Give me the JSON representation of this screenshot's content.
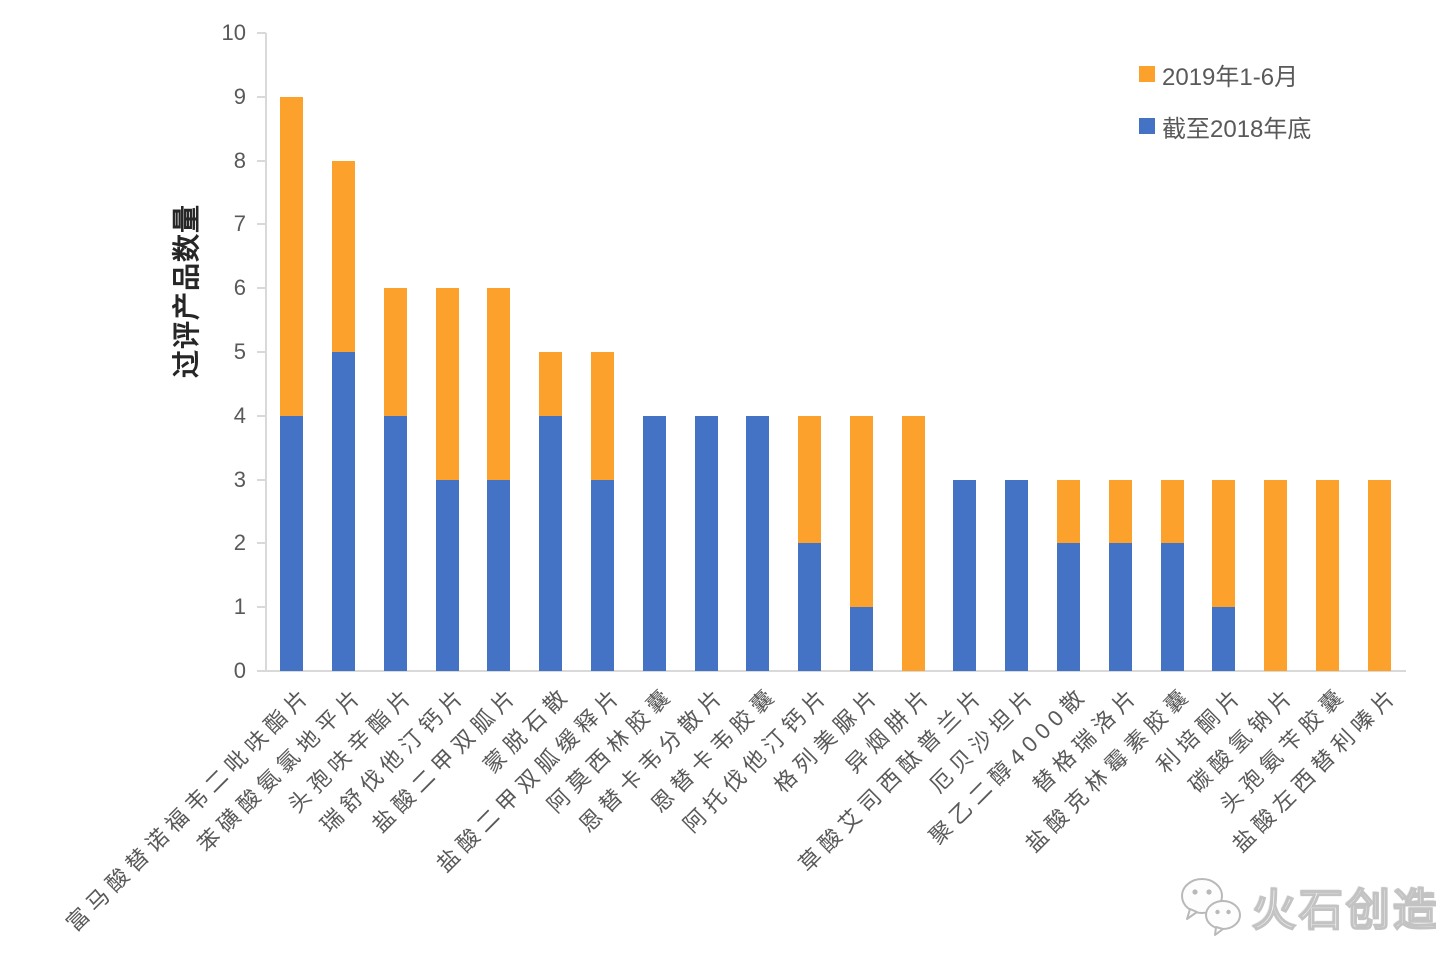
{
  "chart_data": {
    "type": "bar",
    "stacked": true,
    "ylabel": "过评产品数量",
    "ylim": [
      0,
      10
    ],
    "yticks": [
      0,
      1,
      2,
      3,
      4,
      5,
      6,
      7,
      8,
      9,
      10
    ],
    "grid": false,
    "legend_position": "top-right",
    "categories": [
      "富马酸替诺福韦二吡呋酯片",
      "苯磺酸氨氯地平片",
      "头孢呋辛酯片",
      "瑞舒伐他汀钙片",
      "盐酸二甲双胍片",
      "蒙脱石散",
      "盐酸二甲双胍缓释片",
      "阿莫西林胶囊",
      "恩替卡韦分散片",
      "恩替卡韦胶囊",
      "阿托伐他汀钙片",
      "格列美脲片",
      "异烟肼片",
      "草酸艾司西酞普兰片",
      "厄贝沙坦片",
      "聚乙二醇4000散",
      "替格瑞洛片",
      "盐酸克林霉素胶囊",
      "利培酮片",
      "碳酸氢钠片",
      "头孢氨苄胶囊",
      "盐酸左西替利嗪片"
    ],
    "series": [
      {
        "name": "截至2018年底",
        "color": "#4472C4",
        "values": [
          4,
          5,
          4,
          3,
          3,
          4,
          3,
          4,
          4,
          4,
          2,
          1,
          0,
          3,
          3,
          2,
          2,
          2,
          1,
          0,
          0,
          0
        ]
      },
      {
        "name": "2019年1-6月",
        "color": "#FCA22C",
        "values": [
          5,
          3,
          2,
          3,
          3,
          1,
          2,
          0,
          0,
          0,
          2,
          3,
          4,
          0,
          0,
          1,
          1,
          1,
          2,
          3,
          3,
          3
        ]
      }
    ],
    "totals": [
      9,
      8,
      6,
      6,
      6,
      5,
      5,
      4,
      4,
      4,
      4,
      4,
      4,
      3,
      3,
      3,
      3,
      3,
      3,
      3,
      3,
      3
    ],
    "legend": {
      "entries": [
        {
          "label": "2019年1-6月",
          "color": "#FCA22C"
        },
        {
          "label": "截至2018年底",
          "color": "#4472C4"
        }
      ]
    },
    "axis_style": {
      "line_color": "#D9D9D9",
      "tick_label_color": "#595959"
    }
  },
  "watermark": {
    "brand": "火石创造",
    "icon": "wechat-icon"
  }
}
